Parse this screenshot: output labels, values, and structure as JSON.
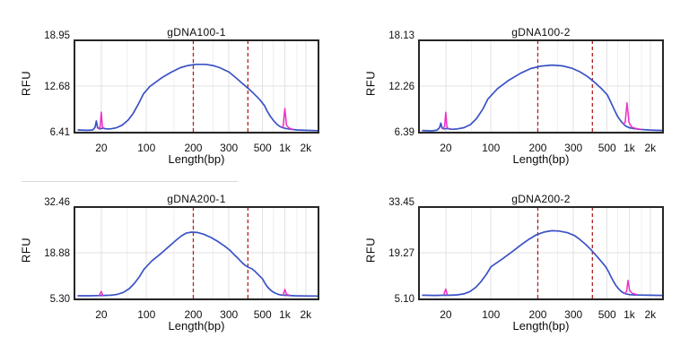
{
  "colors": {
    "background": "#ffffff",
    "trace": "#3a52c6",
    "marker": "#ee2fc8",
    "threshold": "#b22222",
    "grid_major": "#e2e2e2",
    "grid_minor": "#f1efef",
    "border": "#262626",
    "text": "#111111",
    "separator": "#d9d9d9"
  },
  "x_scale": {
    "anchors_bp_frac": [
      [
        10,
        0.0
      ],
      [
        20,
        0.11
      ],
      [
        100,
        0.295
      ],
      [
        200,
        0.487
      ],
      [
        300,
        0.633
      ],
      [
        500,
        0.771
      ],
      [
        1000,
        0.862
      ],
      [
        2000,
        0.948
      ],
      [
        2800,
        1.0
      ]
    ],
    "minor_grid_bp": [
      50,
      150,
      250,
      700,
      1500
    ]
  },
  "chart_data": [
    {
      "type": "line",
      "title": "gDNA100-1",
      "xlabel": "Length(bp)",
      "ylabel": "RFU",
      "x_tick_labels": [
        "20",
        "100",
        "200",
        "300",
        "500",
        "1k",
        "2k"
      ],
      "x_tick_bp": [
        20,
        100,
        200,
        300,
        500,
        1000,
        2000
      ],
      "y_tick_labels": [
        "18.95",
        "12.68",
        "6.41"
      ],
      "y_tick_values": [
        18.95,
        12.68,
        6.41
      ],
      "threshold_lines_bp": [
        200,
        400
      ],
      "grid": true,
      "legend": "none",
      "series": [
        {
          "name": "sample",
          "color": "trace",
          "points": [
            [
              11,
              6.65
            ],
            [
              14,
              6.6
            ],
            [
              16,
              6.65
            ],
            [
              17,
              7.0
            ],
            [
              17.6,
              7.9
            ],
            [
              18.2,
              6.95
            ],
            [
              19,
              6.8
            ],
            [
              21,
              6.9
            ],
            [
              24,
              6.8
            ],
            [
              28,
              6.8
            ],
            [
              34,
              6.95
            ],
            [
              42,
              7.3
            ],
            [
              52,
              8.0
            ],
            [
              62,
              8.9
            ],
            [
              75,
              10.2
            ],
            [
              90,
              11.6
            ],
            [
              105,
              12.6
            ],
            [
              125,
              13.8
            ],
            [
              145,
              14.6
            ],
            [
              165,
              15.2
            ],
            [
              185,
              15.5
            ],
            [
              205,
              15.65
            ],
            [
              230,
              15.65
            ],
            [
              250,
              15.5
            ],
            [
              270,
              15.2
            ],
            [
              300,
              14.6
            ],
            [
              330,
              13.9
            ],
            [
              365,
              13.1
            ],
            [
              400,
              12.4
            ],
            [
              440,
              11.6
            ],
            [
              480,
              10.8
            ],
            [
              530,
              10.0
            ],
            [
              580,
              9.2
            ],
            [
              640,
              8.5
            ],
            [
              710,
              7.9
            ],
            [
              790,
              7.4
            ],
            [
              870,
              7.1
            ],
            [
              950,
              6.95
            ],
            [
              1050,
              6.85
            ],
            [
              1200,
              6.75
            ],
            [
              1500,
              6.65
            ],
            [
              2000,
              6.6
            ],
            [
              2800,
              6.55
            ]
          ]
        },
        {
          "name": "lower-marker",
          "color": "marker",
          "points": [
            [
              18.6,
              6.85
            ],
            [
              19.4,
              7.1
            ],
            [
              20,
              9.1
            ],
            [
              20.8,
              7.2
            ],
            [
              21.6,
              6.9
            ]
          ]
        },
        {
          "name": "upper-marker",
          "color": "marker",
          "points": [
            [
              900,
              7.0
            ],
            [
              950,
              7.2
            ],
            [
              1000,
              9.6
            ],
            [
              1060,
              7.3
            ],
            [
              1150,
              6.9
            ],
            [
              1300,
              6.75
            ]
          ]
        }
      ]
    },
    {
      "type": "line",
      "title": "gDNA100-2",
      "xlabel": "Length(bp)",
      "ylabel": "RFU",
      "x_tick_labels": [
        "20",
        "100",
        "200",
        "300",
        "500",
        "1k",
        "2k"
      ],
      "x_tick_bp": [
        20,
        100,
        200,
        300,
        500,
        1000,
        2000
      ],
      "y_tick_labels": [
        "18.13",
        "12.26",
        "6.39"
      ],
      "y_tick_values": [
        18.13,
        12.26,
        6.39
      ],
      "threshold_lines_bp": [
        200,
        400
      ],
      "grid": true,
      "legend": "none",
      "series": [
        {
          "name": "sample",
          "color": "trace",
          "points": [
            [
              11,
              6.55
            ],
            [
              14,
              6.5
            ],
            [
              16,
              6.6
            ],
            [
              17,
              6.9
            ],
            [
              17.6,
              7.5
            ],
            [
              18.2,
              6.85
            ],
            [
              19,
              6.75
            ],
            [
              21,
              6.8
            ],
            [
              25,
              6.7
            ],
            [
              30,
              6.75
            ],
            [
              38,
              6.9
            ],
            [
              48,
              7.3
            ],
            [
              60,
              8.1
            ],
            [
              75,
              9.3
            ],
            [
              90,
              10.6
            ],
            [
              110,
              11.9
            ],
            [
              130,
              13.0
            ],
            [
              155,
              13.9
            ],
            [
              180,
              14.5
            ],
            [
              205,
              14.8
            ],
            [
              235,
              14.95
            ],
            [
              265,
              14.85
            ],
            [
              295,
              14.55
            ],
            [
              330,
              14.1
            ],
            [
              370,
              13.5
            ],
            [
              410,
              12.8
            ],
            [
              455,
              12.0
            ],
            [
              505,
              11.1
            ],
            [
              560,
              10.2
            ],
            [
              620,
              9.3
            ],
            [
              690,
              8.4
            ],
            [
              760,
              7.8
            ],
            [
              830,
              7.4
            ],
            [
              900,
              7.1
            ],
            [
              1000,
              6.9
            ],
            [
              1150,
              6.8
            ],
            [
              1400,
              6.7
            ],
            [
              2000,
              6.6
            ],
            [
              2800,
              6.55
            ]
          ]
        },
        {
          "name": "lower-marker",
          "color": "marker",
          "points": [
            [
              18.6,
              6.8
            ],
            [
              19.4,
              7.1
            ],
            [
              20,
              8.9
            ],
            [
              20.8,
              7.1
            ],
            [
              21.6,
              6.8
            ]
          ]
        },
        {
          "name": "upper-marker",
          "color": "marker",
          "points": [
            [
              830,
              7.4
            ],
            [
              880,
              7.6
            ],
            [
              930,
              10.1
            ],
            [
              990,
              7.6
            ],
            [
              1080,
              7.0
            ],
            [
              1250,
              6.8
            ],
            [
              1450,
              6.7
            ]
          ]
        }
      ]
    },
    {
      "type": "line",
      "title": "gDNA200-1",
      "xlabel": "Length(bp)",
      "ylabel": "RFU",
      "x_tick_labels": [
        "20",
        "100",
        "200",
        "300",
        "500",
        "1k",
        "2k"
      ],
      "x_tick_bp": [
        20,
        100,
        200,
        300,
        500,
        1000,
        2000
      ],
      "y_tick_labels": [
        "32.46",
        "18.88",
        "5.30"
      ],
      "y_tick_values": [
        32.46,
        18.88,
        5.3
      ],
      "threshold_lines_bp": [
        200,
        400
      ],
      "grid": true,
      "legend": "none",
      "series": [
        {
          "name": "sample",
          "color": "trace",
          "points": [
            [
              11,
              6.1
            ],
            [
              15,
              6.1
            ],
            [
              18,
              6.15
            ],
            [
              22,
              6.2
            ],
            [
              28,
              6.25
            ],
            [
              35,
              6.5
            ],
            [
              44,
              7.1
            ],
            [
              54,
              8.2
            ],
            [
              65,
              9.8
            ],
            [
              78,
              11.8
            ],
            [
              92,
              14.0
            ],
            [
              108,
              16.4
            ],
            [
              125,
              18.8
            ],
            [
              140,
              20.8
            ],
            [
              155,
              22.6
            ],
            [
              168,
              23.9
            ],
            [
              180,
              24.7
            ],
            [
              195,
              25.0
            ],
            [
              210,
              24.9
            ],
            [
              225,
              24.4
            ],
            [
              245,
              23.4
            ],
            [
              265,
              22.2
            ],
            [
              285,
              20.9
            ],
            [
              305,
              19.6
            ],
            [
              325,
              18.3
            ],
            [
              345,
              17.2
            ],
            [
              365,
              16.0
            ],
            [
              385,
              15.1
            ],
            [
              405,
              14.5
            ],
            [
              425,
              14.1
            ],
            [
              445,
              13.4
            ],
            [
              470,
              12.3
            ],
            [
              500,
              11.1
            ],
            [
              535,
              9.9
            ],
            [
              575,
              8.9
            ],
            [
              620,
              8.1
            ],
            [
              675,
              7.4
            ],
            [
              740,
              6.9
            ],
            [
              820,
              6.5
            ],
            [
              900,
              6.3
            ],
            [
              1000,
              6.25
            ],
            [
              1150,
              6.2
            ],
            [
              1400,
              6.1
            ],
            [
              2000,
              6.05
            ],
            [
              2800,
              6.0
            ]
          ]
        },
        {
          "name": "lower-marker",
          "color": "marker",
          "points": [
            [
              19,
              6.25
            ],
            [
              20,
              7.4
            ],
            [
              21,
              6.3
            ]
          ]
        },
        {
          "name": "upper-marker",
          "color": "marker",
          "points": [
            [
              950,
              6.4
            ],
            [
              1000,
              8.0
            ],
            [
              1060,
              6.5
            ],
            [
              1150,
              6.3
            ]
          ]
        }
      ]
    },
    {
      "type": "line",
      "title": "gDNA200-2",
      "xlabel": "Length(bp)",
      "ylabel": "RFU",
      "x_tick_labels": [
        "20",
        "100",
        "200",
        "300",
        "500",
        "1k",
        "2k"
      ],
      "x_tick_bp": [
        20,
        100,
        200,
        300,
        500,
        1000,
        2000
      ],
      "y_tick_labels": [
        "33.45",
        "19.27",
        "5.10"
      ],
      "y_tick_values": [
        33.45,
        19.27,
        5.1
      ],
      "threshold_lines_bp": [
        200,
        400
      ],
      "grid": true,
      "legend": "none",
      "series": [
        {
          "name": "sample",
          "color": "trace",
          "points": [
            [
              11,
              6.1
            ],
            [
              15,
              6.05
            ],
            [
              19,
              6.1
            ],
            [
              24,
              6.1
            ],
            [
              30,
              6.2
            ],
            [
              38,
              6.5
            ],
            [
              47,
              7.2
            ],
            [
              58,
              8.5
            ],
            [
              70,
              10.3
            ],
            [
              85,
              12.6
            ],
            [
              100,
              14.9
            ],
            [
              118,
              17.3
            ],
            [
              136,
              19.5
            ],
            [
              155,
              21.6
            ],
            [
              175,
              23.4
            ],
            [
              195,
              24.8
            ],
            [
              215,
              25.7
            ],
            [
              235,
              26.1
            ],
            [
              255,
              26.0
            ],
            [
              280,
              25.5
            ],
            [
              305,
              24.6
            ],
            [
              330,
              23.4
            ],
            [
              360,
              21.9
            ],
            [
              390,
              20.3
            ],
            [
              420,
              18.6
            ],
            [
              455,
              16.7
            ],
            [
              490,
              14.9
            ],
            [
              525,
              13.3
            ],
            [
              565,
              11.8
            ],
            [
              610,
              10.4
            ],
            [
              660,
              9.1
            ],
            [
              715,
              8.1
            ],
            [
              775,
              7.3
            ],
            [
              840,
              6.8
            ],
            [
              910,
              6.5
            ],
            [
              1000,
              6.3
            ],
            [
              1150,
              6.2
            ],
            [
              1400,
              6.15
            ],
            [
              2000,
              6.1
            ],
            [
              2800,
              6.05
            ]
          ]
        },
        {
          "name": "lower-marker",
          "color": "marker",
          "points": [
            [
              19,
              6.3
            ],
            [
              20,
              8.0
            ],
            [
              21,
              6.35
            ]
          ]
        },
        {
          "name": "upper-marker",
          "color": "marker",
          "points": [
            [
              870,
              6.7
            ],
            [
              920,
              7.3
            ],
            [
              960,
              10.7
            ],
            [
              1010,
              7.6
            ],
            [
              1100,
              6.7
            ],
            [
              1300,
              6.3
            ]
          ]
        }
      ]
    }
  ]
}
